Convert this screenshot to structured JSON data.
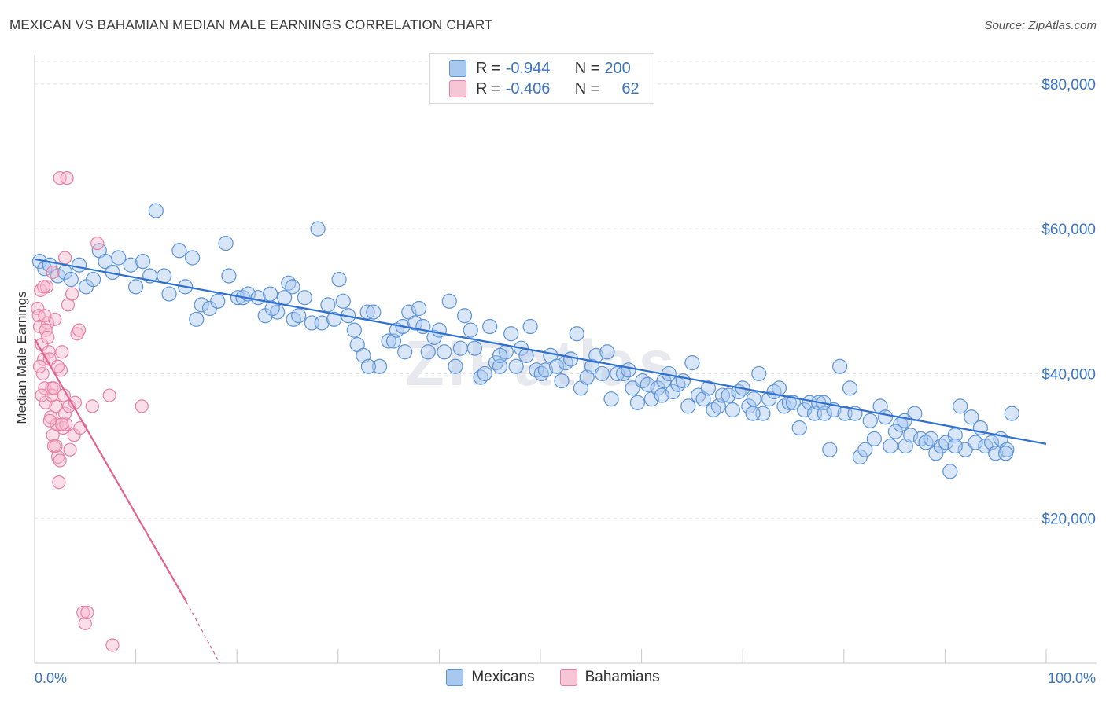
{
  "title": "MEXICAN VS BAHAMIAN MEDIAN MALE EARNINGS CORRELATION CHART",
  "source": "Source: ZipAtlas.com",
  "watermark": "ZIPatlas",
  "colors": {
    "blue_fill": "#a8c8f0",
    "blue_stroke": "#5b93d8",
    "blue_line": "#2e6fd0",
    "pink_fill": "#f7b8cc",
    "pink_stroke": "#e87fa2",
    "pink_line": "#e3628f",
    "tick_text": "#3b73c4",
    "grid": "#e3e3e3"
  },
  "legend": {
    "rows": [
      {
        "r_label": "R =",
        "r_value": "-0.944",
        "n_label": "N =",
        "n_value": "200"
      },
      {
        "r_label": "R =",
        "r_value": "-0.406",
        "n_label": "N =",
        "n_value": "62"
      }
    ]
  },
  "bottom_legend": [
    "Mexicans",
    "Bahamians"
  ],
  "chart_data": {
    "type": "scatter",
    "title": "MEXICAN VS BAHAMIAN MEDIAN MALE EARNINGS CORRELATION CHART",
    "xlabel": "",
    "ylabel": "Median Male Earnings",
    "xlim": [
      0,
      100
    ],
    "ylim": [
      0,
      84000
    ],
    "x_tick_labels": [
      "0.0%",
      "100.0%"
    ],
    "y_ticks": [
      20000,
      40000,
      60000,
      80000
    ],
    "y_tick_labels": [
      "$20,000",
      "$40,000",
      "$60,000",
      "$80,000"
    ],
    "grid": true,
    "legend_position": "top-center",
    "series": [
      {
        "name": "Mexicans",
        "r": -0.944,
        "n": 200,
        "trend": {
          "x": [
            0,
            100
          ],
          "y": [
            55800,
            30300
          ]
        },
        "points": [
          [
            0.5,
            55500
          ],
          [
            1.0,
            54500
          ],
          [
            1.5,
            55000
          ],
          [
            2.3,
            53500
          ],
          [
            3.0,
            54000
          ],
          [
            3.6,
            53000
          ],
          [
            4.4,
            55000
          ],
          [
            5.1,
            52000
          ],
          [
            5.8,
            53000
          ],
          [
            6.4,
            57000
          ],
          [
            7.0,
            55500
          ],
          [
            7.7,
            54000
          ],
          [
            8.3,
            56000
          ],
          [
            9.5,
            55000
          ],
          [
            10.0,
            52000
          ],
          [
            10.7,
            55500
          ],
          [
            11.4,
            53500
          ],
          [
            12.0,
            62500
          ],
          [
            12.8,
            53500
          ],
          [
            13.3,
            51000
          ],
          [
            14.3,
            57000
          ],
          [
            14.9,
            52000
          ],
          [
            15.6,
            56000
          ],
          [
            16.0,
            47500
          ],
          [
            16.5,
            49500
          ],
          [
            17.3,
            49000
          ],
          [
            18.1,
            50000
          ],
          [
            18.9,
            58000
          ],
          [
            19.2,
            53500
          ],
          [
            20.1,
            50500
          ],
          [
            20.6,
            50500
          ],
          [
            21.1,
            51000
          ],
          [
            22.1,
            50500
          ],
          [
            22.8,
            48000
          ],
          [
            23.3,
            51000
          ],
          [
            24.0,
            48500
          ],
          [
            24.7,
            50500
          ],
          [
            25.1,
            52500
          ],
          [
            25.6,
            47500
          ],
          [
            26.1,
            48000
          ],
          [
            26.7,
            50500
          ],
          [
            27.4,
            47000
          ],
          [
            28.0,
            60000
          ],
          [
            28.4,
            47000
          ],
          [
            29.0,
            49500
          ],
          [
            29.6,
            47500
          ],
          [
            30.1,
            53000
          ],
          [
            30.5,
            50000
          ],
          [
            31.0,
            48000
          ],
          [
            31.6,
            46000
          ],
          [
            31.9,
            44000
          ],
          [
            32.5,
            42500
          ],
          [
            32.9,
            48500
          ],
          [
            33.5,
            48500
          ],
          [
            34.1,
            41000
          ],
          [
            35.0,
            44500
          ],
          [
            35.5,
            44500
          ],
          [
            35.8,
            46000
          ],
          [
            36.4,
            46500
          ],
          [
            36.6,
            43000
          ],
          [
            37.0,
            48500
          ],
          [
            37.6,
            47000
          ],
          [
            38.0,
            49000
          ],
          [
            38.4,
            46500
          ],
          [
            38.9,
            43000
          ],
          [
            39.5,
            45000
          ],
          [
            40.0,
            46000
          ],
          [
            40.5,
            43000
          ],
          [
            41.0,
            50000
          ],
          [
            41.6,
            41000
          ],
          [
            42.1,
            43500
          ],
          [
            42.5,
            48000
          ],
          [
            43.1,
            46000
          ],
          [
            43.5,
            43500
          ],
          [
            44.1,
            39500
          ],
          [
            44.5,
            40000
          ],
          [
            45.0,
            46500
          ],
          [
            45.6,
            41500
          ],
          [
            46.0,
            41000
          ],
          [
            46.6,
            43000
          ],
          [
            47.1,
            45500
          ],
          [
            47.6,
            41000
          ],
          [
            48.1,
            43500
          ],
          [
            48.6,
            42500
          ],
          [
            49.0,
            46500
          ],
          [
            49.6,
            40500
          ],
          [
            50.1,
            40000
          ],
          [
            50.5,
            40500
          ],
          [
            51.0,
            42500
          ],
          [
            51.6,
            41000
          ],
          [
            52.1,
            39000
          ],
          [
            52.5,
            41500
          ],
          [
            53.0,
            42000
          ],
          [
            53.6,
            45500
          ],
          [
            54.0,
            38000
          ],
          [
            54.6,
            39500
          ],
          [
            55.1,
            41000
          ],
          [
            55.5,
            42500
          ],
          [
            56.1,
            40000
          ],
          [
            56.6,
            43000
          ],
          [
            57.0,
            36500
          ],
          [
            57.6,
            40000
          ],
          [
            58.2,
            40000
          ],
          [
            58.7,
            40500
          ],
          [
            59.1,
            38000
          ],
          [
            59.6,
            36000
          ],
          [
            60.1,
            39000
          ],
          [
            60.6,
            38500
          ],
          [
            61.0,
            36500
          ],
          [
            61.6,
            38000
          ],
          [
            62.2,
            39000
          ],
          [
            62.7,
            40000
          ],
          [
            63.1,
            37500
          ],
          [
            63.6,
            38500
          ],
          [
            64.1,
            39000
          ],
          [
            64.6,
            35500
          ],
          [
            65.0,
            41500
          ],
          [
            65.6,
            37000
          ],
          [
            66.1,
            36500
          ],
          [
            66.6,
            38000
          ],
          [
            67.1,
            35000
          ],
          [
            67.6,
            35500
          ],
          [
            68.0,
            37000
          ],
          [
            68.6,
            37000
          ],
          [
            69.0,
            35000
          ],
          [
            69.6,
            37500
          ],
          [
            70.0,
            38000
          ],
          [
            70.6,
            35500
          ],
          [
            71.1,
            36500
          ],
          [
            71.6,
            40000
          ],
          [
            72.0,
            34500
          ],
          [
            72.6,
            36500
          ],
          [
            73.1,
            37500
          ],
          [
            73.6,
            38000
          ],
          [
            74.1,
            35500
          ],
          [
            74.6,
            36000
          ],
          [
            75.0,
            36000
          ],
          [
            75.6,
            32500
          ],
          [
            76.1,
            35000
          ],
          [
            76.6,
            36000
          ],
          [
            77.1,
            34500
          ],
          [
            77.5,
            36000
          ],
          [
            78.1,
            34500
          ],
          [
            78.6,
            29500
          ],
          [
            79.0,
            35000
          ],
          [
            79.6,
            41000
          ],
          [
            80.1,
            34500
          ],
          [
            80.6,
            38000
          ],
          [
            81.1,
            34500
          ],
          [
            81.6,
            28500
          ],
          [
            82.1,
            29500
          ],
          [
            82.6,
            33500
          ],
          [
            83.0,
            31000
          ],
          [
            83.6,
            35500
          ],
          [
            84.1,
            34000
          ],
          [
            84.6,
            30000
          ],
          [
            85.1,
            32000
          ],
          [
            85.6,
            33000
          ],
          [
            86.1,
            30000
          ],
          [
            86.6,
            31500
          ],
          [
            87.0,
            34500
          ],
          [
            87.6,
            31000
          ],
          [
            88.1,
            30500
          ],
          [
            88.6,
            31000
          ],
          [
            89.1,
            29000
          ],
          [
            89.6,
            30000
          ],
          [
            90.1,
            30500
          ],
          [
            90.5,
            26500
          ],
          [
            91.0,
            31500
          ],
          [
            91.5,
            35500
          ],
          [
            92.0,
            29500
          ],
          [
            92.6,
            34000
          ],
          [
            93.0,
            30500
          ],
          [
            93.5,
            32500
          ],
          [
            94.0,
            30000
          ],
          [
            94.6,
            30500
          ],
          [
            95.0,
            29000
          ],
          [
            95.5,
            31000
          ],
          [
            96.1,
            29500
          ],
          [
            96.6,
            34500
          ],
          [
            25.5,
            52000
          ],
          [
            33.0,
            41000
          ],
          [
            46.0,
            42500
          ],
          [
            62.0,
            37000
          ],
          [
            71.0,
            34500
          ],
          [
            78.0,
            36000
          ],
          [
            86.0,
            33500
          ],
          [
            91.0,
            30000
          ],
          [
            96.0,
            29000
          ],
          [
            23.5,
            49000
          ]
        ]
      },
      {
        "name": "Bahamians",
        "r": -0.406,
        "n": 62,
        "trend": {
          "x": [
            0,
            15
          ],
          "y": [
            44800,
            8500
          ]
        },
        "trend_dashed": {
          "x": [
            15,
            18.3
          ],
          "y": [
            8500,
            0
          ]
        },
        "points": [
          [
            0.3,
            49000
          ],
          [
            0.4,
            48000
          ],
          [
            0.5,
            46500
          ],
          [
            0.6,
            51500
          ],
          [
            0.7,
            44000
          ],
          [
            0.8,
            40000
          ],
          [
            0.9,
            42000
          ],
          [
            1.0,
            38000
          ],
          [
            1.1,
            36000
          ],
          [
            1.2,
            52000
          ],
          [
            1.3,
            47000
          ],
          [
            1.4,
            43000
          ],
          [
            1.5,
            42000
          ],
          [
            1.6,
            34000
          ],
          [
            1.7,
            38000
          ],
          [
            1.8,
            31500
          ],
          [
            1.9,
            30000
          ],
          [
            2.0,
            47500
          ],
          [
            2.1,
            35500
          ],
          [
            2.2,
            33000
          ],
          [
            2.3,
            28500
          ],
          [
            2.4,
            25000
          ],
          [
            2.5,
            67000
          ],
          [
            2.6,
            40500
          ],
          [
            2.7,
            43000
          ],
          [
            2.8,
            32500
          ],
          [
            2.9,
            37000
          ],
          [
            3.0,
            34500
          ],
          [
            3.1,
            33000
          ],
          [
            3.2,
            67000
          ],
          [
            3.3,
            49500
          ],
          [
            3.4,
            35500
          ],
          [
            3.5,
            29500
          ],
          [
            3.7,
            51000
          ],
          [
            3.9,
            31500
          ],
          [
            4.0,
            36000
          ],
          [
            4.2,
            45500
          ],
          [
            4.4,
            46000
          ],
          [
            4.5,
            32500
          ],
          [
            4.8,
            7000
          ],
          [
            5.0,
            5500
          ],
          [
            5.2,
            7000
          ],
          [
            5.7,
            35500
          ],
          [
            6.2,
            58000
          ],
          [
            7.4,
            37000
          ],
          [
            7.7,
            2500
          ],
          [
            10.6,
            35500
          ],
          [
            0.5,
            41000
          ],
          [
            0.7,
            37000
          ],
          [
            0.9,
            52000
          ],
          [
            1.1,
            46000
          ],
          [
            1.3,
            45000
          ],
          [
            1.5,
            33500
          ],
          [
            1.7,
            37000
          ],
          [
            1.9,
            38000
          ],
          [
            2.1,
            30000
          ],
          [
            2.3,
            41000
          ],
          [
            2.5,
            28000
          ],
          [
            2.7,
            33000
          ],
          [
            3.0,
            56000
          ],
          [
            1.0,
            48000
          ],
          [
            1.8,
            54000
          ]
        ]
      }
    ]
  }
}
